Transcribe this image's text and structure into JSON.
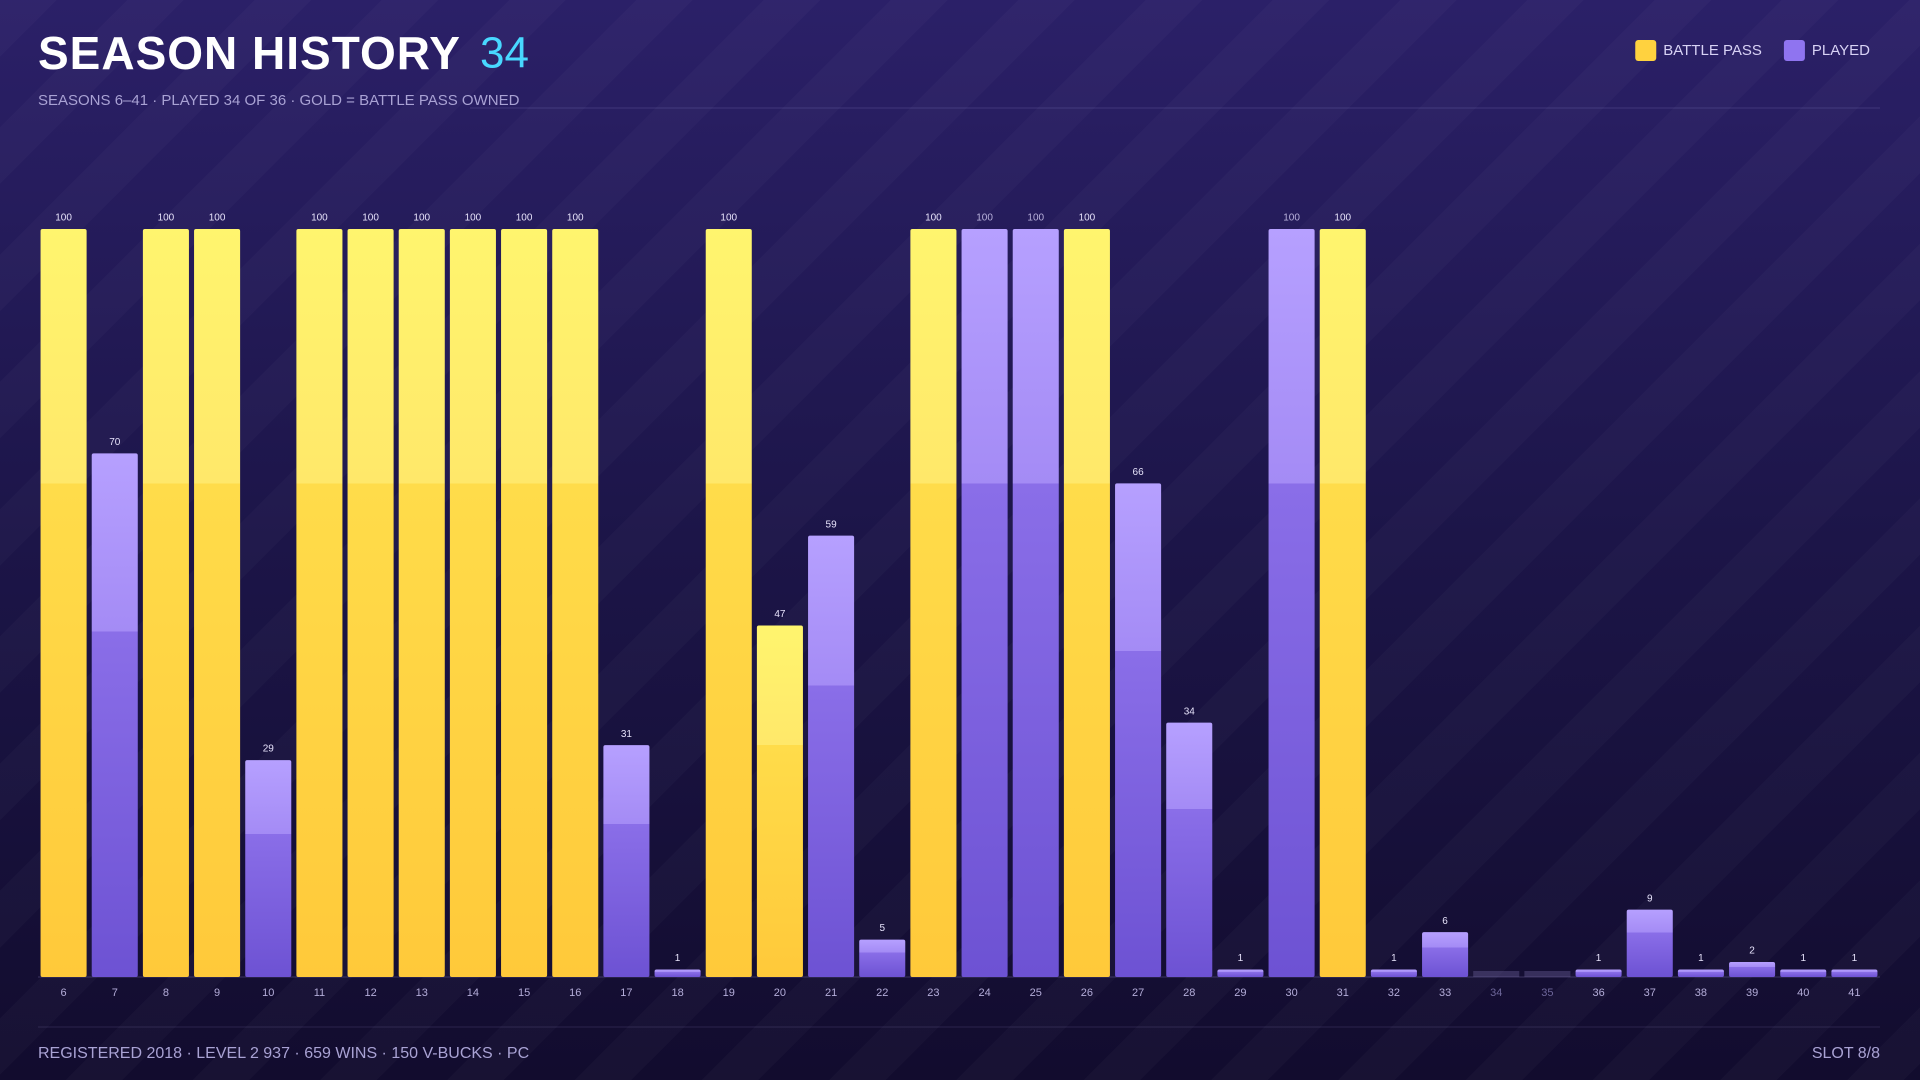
{
  "chart_data": {
    "type": "bar",
    "title": "SEASON HISTORY",
    "title_count": "34",
    "subtitle": "SEASONS 6–41 · PLAYED 34 OF 36 · GOLD = BATTLE PASS OWNED",
    "footer_left": "REGISTERED 2018 · LEVEL 2 937 · 659 WINS · 150 V-BUCKS · PC",
    "footer_right": "SLOT 8/8",
    "legend": "top-right",
    "categories": [
      "6",
      "7",
      "8",
      "9",
      "10",
      "11",
      "12",
      "13",
      "14",
      "15",
      "16",
      "17",
      "18",
      "19",
      "20",
      "21",
      "22",
      "23",
      "24",
      "25",
      "26",
      "27",
      "28",
      "29",
      "30",
      "31",
      "32",
      "33",
      "34",
      "35",
      "36",
      "37",
      "38",
      "39",
      "40",
      "41"
    ],
    "series": [
      {
        "name": "BATTLE PASS",
        "color": "#ffd23f",
        "values": [
          100,
          null,
          100,
          100,
          null,
          100,
          100,
          100,
          100,
          100,
          100,
          null,
          null,
          100,
          47,
          null,
          null,
          100,
          null,
          null,
          100,
          null,
          null,
          null,
          null,
          100,
          null,
          null,
          null,
          null,
          null,
          null,
          null,
          null,
          null,
          null
        ]
      },
      {
        "name": "PLAYED",
        "color": "#8f74f0",
        "values": [
          null,
          70,
          null,
          null,
          29,
          null,
          null,
          null,
          null,
          null,
          null,
          31,
          1,
          null,
          null,
          59,
          5,
          null,
          100,
          100,
          null,
          66,
          34,
          1,
          100,
          null,
          1,
          6,
          null,
          null,
          1,
          9,
          1,
          2,
          1,
          1
        ]
      }
    ],
    "ylim": [
      0,
      100
    ]
  }
}
